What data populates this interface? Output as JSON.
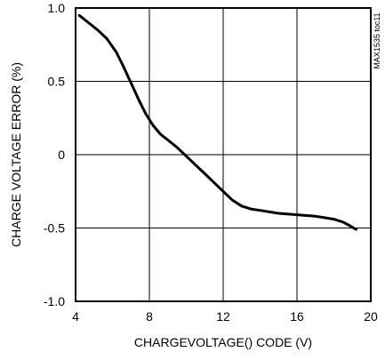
{
  "chart_data": {
    "type": "line",
    "title": "",
    "xlabel": "CHARGEVOLTAGE() CODE (V)",
    "ylabel": "CHARGE VOLTAGE ERROR (%)",
    "xlim": [
      4,
      20
    ],
    "ylim": [
      -1.0,
      1.0
    ],
    "x_ticks": [
      4,
      8,
      12,
      16,
      20
    ],
    "x_tick_labels": [
      "4",
      "8",
      "12",
      "16",
      "20"
    ],
    "y_ticks": [
      1.0,
      0.5,
      0,
      -0.5,
      -1.0
    ],
    "y_tick_labels": [
      "1.0",
      "0.5",
      "0",
      "-0.5",
      "-1.0"
    ],
    "grid": true,
    "line_color": "#000000",
    "annotation": "MAX1535 toc11",
    "series": [
      {
        "x": [
          4.2,
          4.7,
          5.2,
          5.7,
          6.2,
          6.6,
          7.0,
          7.4,
          7.8,
          8.2,
          8.6,
          9.0,
          9.5,
          10.0,
          10.5,
          11.0,
          11.5,
          12.0,
          12.5,
          13.0,
          13.5,
          14.0,
          15.0,
          16.0,
          17.0,
          17.5,
          18.0,
          18.5,
          18.8,
          19.2
        ],
        "y": [
          0.95,
          0.9,
          0.85,
          0.79,
          0.7,
          0.6,
          0.49,
          0.38,
          0.28,
          0.2,
          0.14,
          0.1,
          0.05,
          -0.01,
          -0.07,
          -0.13,
          -0.19,
          -0.25,
          -0.31,
          -0.35,
          -0.37,
          -0.38,
          -0.4,
          -0.41,
          -0.42,
          -0.43,
          -0.44,
          -0.46,
          -0.48,
          -0.51
        ]
      }
    ]
  }
}
